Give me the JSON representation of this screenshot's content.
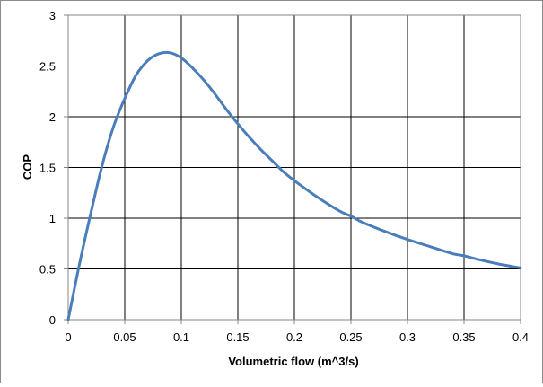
{
  "chart_data": {
    "type": "line",
    "title": "",
    "xlabel": "Volumetric flow (m^3/s)",
    "ylabel": "COP",
    "xlim": [
      0,
      0.4
    ],
    "ylim": [
      0,
      3
    ],
    "x_ticks": [
      "0",
      "0.05",
      "0.1",
      "0.15",
      "0.2",
      "0.25",
      "0.3",
      "0.35",
      "0.4"
    ],
    "y_ticks": [
      "0",
      "0.5",
      "1",
      "1.5",
      "2",
      "2.5",
      "3"
    ],
    "x_tick_values": [
      0,
      0.05,
      0.1,
      0.15,
      0.2,
      0.25,
      0.3,
      0.35,
      0.4
    ],
    "y_tick_values": [
      0,
      0.5,
      1,
      1.5,
      2,
      2.5,
      3
    ],
    "grid": "vertical and horizontal major gridlines",
    "legend": "none",
    "series": [
      {
        "color": "#4a7ebb",
        "x": [
          0,
          0.01,
          0.02,
          0.03,
          0.04,
          0.05,
          0.06,
          0.07,
          0.08,
          0.09,
          0.1,
          0.11,
          0.12,
          0.13,
          0.14,
          0.15,
          0.16,
          0.17,
          0.18,
          0.19,
          0.2,
          0.22,
          0.24,
          0.25,
          0.26,
          0.28,
          0.3,
          0.32,
          0.34,
          0.35,
          0.36,
          0.38,
          0.4
        ],
        "y": [
          0,
          0.55,
          1.05,
          1.52,
          1.9,
          2.18,
          2.41,
          2.55,
          2.62,
          2.63,
          2.58,
          2.48,
          2.36,
          2.22,
          2.07,
          1.93,
          1.8,
          1.68,
          1.57,
          1.46,
          1.37,
          1.21,
          1.07,
          1.02,
          0.96,
          0.87,
          0.79,
          0.72,
          0.65,
          0.63,
          0.6,
          0.55,
          0.51
        ]
      }
    ]
  }
}
